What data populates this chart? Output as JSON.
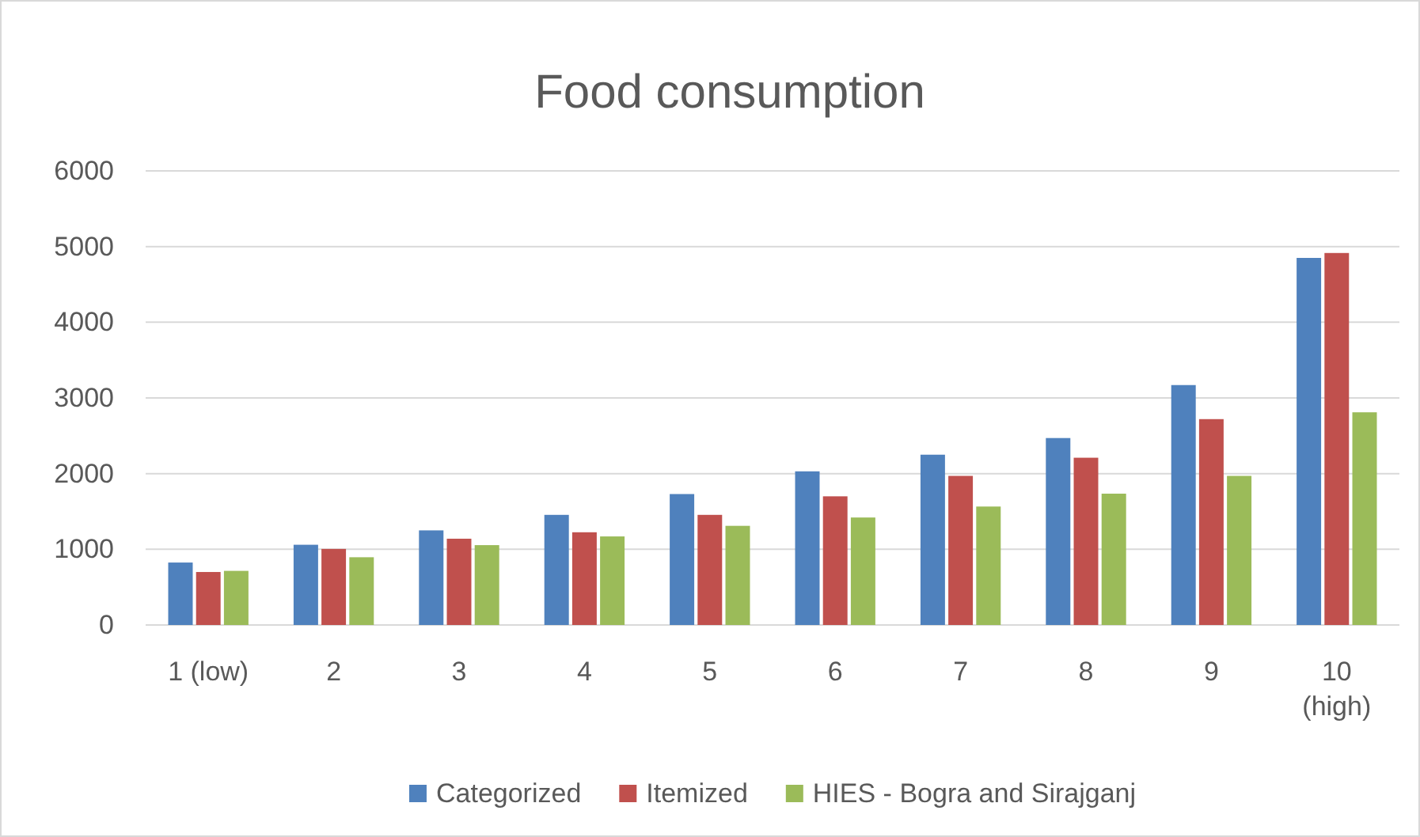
{
  "chart_data": {
    "type": "bar",
    "title": "Food consumption",
    "categories": [
      "1 (low)",
      "2",
      "3",
      "4",
      "5",
      "6",
      "7",
      "8",
      "9",
      "10 (high)"
    ],
    "series": [
      {
        "name": "Categorized",
        "color": "#4f81bd",
        "values": [
          825,
          1060,
          1250,
          1455,
          1730,
          2030,
          2250,
          2470,
          3170,
          4850
        ]
      },
      {
        "name": "Itemized",
        "color": "#c0504d",
        "values": [
          700,
          1005,
          1140,
          1225,
          1455,
          1700,
          1970,
          2210,
          2720,
          4915
        ]
      },
      {
        "name": "HIES - Bogra and Sirajganj",
        "color": "#9bbb59",
        "values": [
          715,
          895,
          1055,
          1170,
          1310,
          1420,
          1565,
          1735,
          1970,
          2810
        ]
      }
    ],
    "ylim": [
      0,
      6000
    ],
    "yticks": [
      0,
      1000,
      2000,
      3000,
      4000,
      5000,
      6000
    ],
    "grid": "y",
    "legend": "bottom"
  }
}
